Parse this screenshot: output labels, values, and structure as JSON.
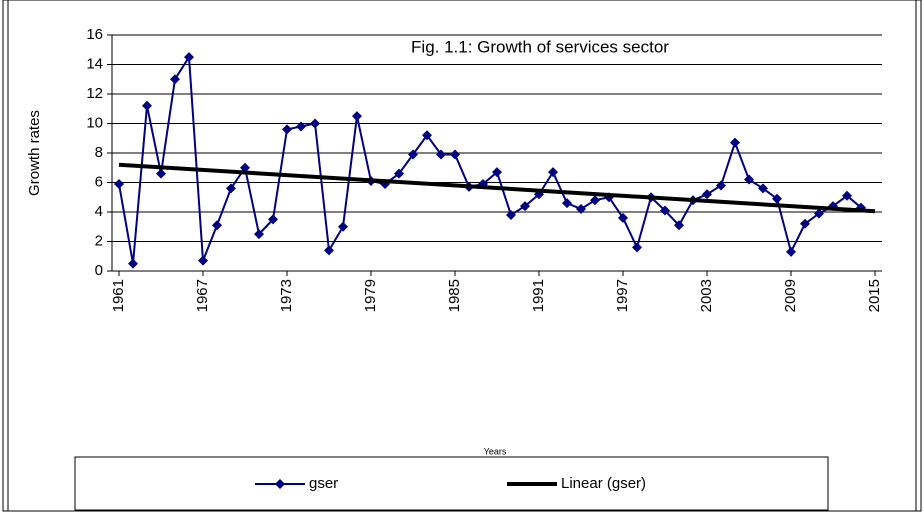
{
  "chart_data": {
    "type": "line",
    "title": "Fig. 1.1: Growth of services sector",
    "y_label": "Growth rates",
    "x_label": "Years",
    "x": [
      1961,
      1962,
      1963,
      1964,
      1965,
      1966,
      1967,
      1968,
      1969,
      1970,
      1971,
      1972,
      1973,
      1974,
      1975,
      1976,
      1977,
      1978,
      1979,
      1980,
      1981,
      1982,
      1983,
      1984,
      1985,
      1986,
      1987,
      1988,
      1989,
      1990,
      1991,
      1992,
      1993,
      1994,
      1995,
      1996,
      1997,
      1998,
      1999,
      2000,
      2001,
      2002,
      2003,
      2004,
      2005,
      2006,
      2007,
      2008,
      2009,
      2010,
      2011,
      2012,
      2013,
      2014
    ],
    "series": [
      {
        "name": "gser",
        "color": "#000080",
        "values": [
          5.9,
          0.5,
          11.2,
          6.6,
          13.0,
          14.5,
          0.7,
          3.1,
          5.6,
          7.0,
          2.5,
          3.5,
          9.6,
          9.8,
          10.0,
          1.4,
          3.0,
          10.5,
          6.1,
          5.9,
          6.6,
          7.9,
          9.2,
          7.9,
          7.9,
          5.7,
          5.9,
          6.7,
          3.8,
          4.4,
          5.2,
          6.7,
          4.6,
          4.2,
          4.8,
          5.0,
          3.6,
          1.6,
          5.0,
          4.1,
          3.1,
          4.8,
          5.2,
          5.8,
          8.7,
          6.2,
          5.6,
          4.9,
          1.3,
          3.2,
          3.9,
          4.4,
          5.1,
          4.3
        ]
      },
      {
        "name": "Linear (gser)",
        "color": "#000000",
        "x": [
          1961,
          2015
        ],
        "values": [
          7.2,
          4.05
        ]
      }
    ],
    "xlim": [
      1960.5,
      2015.5
    ],
    "xticks": [
      1961,
      1967,
      1973,
      1979,
      1985,
      1991,
      1997,
      2003,
      2009,
      2015
    ],
    "ylim": [
      0,
      16
    ],
    "yticks": [
      0,
      2,
      4,
      6,
      8,
      10,
      12,
      14,
      16
    ],
    "grid": true
  }
}
